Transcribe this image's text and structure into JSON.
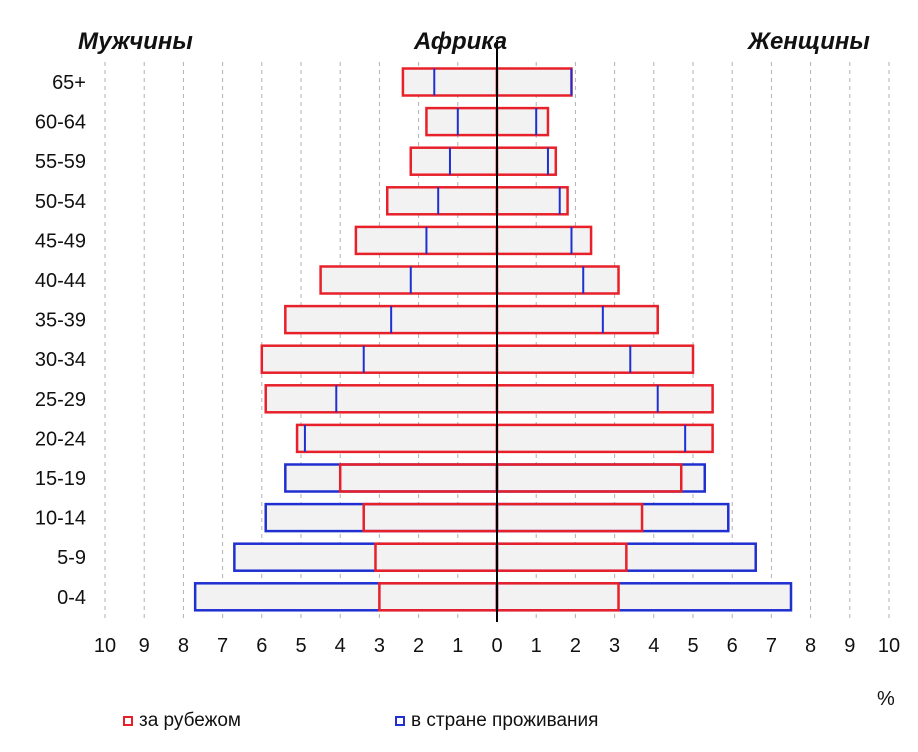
{
  "titles": {
    "men": "Мужчины",
    "region": "Африка",
    "women": "Женщины"
  },
  "percent_unit": "%",
  "legend": {
    "abroad": "за рубежом",
    "home": "в стране проживания"
  },
  "colors": {
    "abroad": "#e8202a",
    "home": "#1f2fd0",
    "bar_fill": "#f2f2f2",
    "grid": "#b0b0b0",
    "axis": "#000000"
  },
  "chart_data": {
    "type": "bar",
    "orientation": "horizontal population pyramid",
    "title": "Африка",
    "left_side": "Мужчины",
    "right_side": "Женщины",
    "xlabel": "%",
    "xlim": [
      -10,
      10
    ],
    "x_tick_labels": [
      "10",
      "9",
      "8",
      "7",
      "6",
      "5",
      "4",
      "3",
      "2",
      "1",
      "0",
      "1",
      "2",
      "3",
      "4",
      "5",
      "6",
      "7",
      "8",
      "9",
      "10"
    ],
    "grid": "vertical dashed",
    "legend_position": "bottom",
    "categories": [
      "65+",
      "60-64",
      "55-59",
      "50-54",
      "45-49",
      "40-44",
      "35-39",
      "30-34",
      "25-29",
      "20-24",
      "15-19",
      "10-14",
      "5-9",
      "0-4"
    ],
    "series": [
      {
        "name": "за рубежом",
        "men": [
          2.4,
          1.8,
          2.2,
          2.8,
          3.6,
          4.5,
          5.4,
          6.0,
          5.9,
          5.1,
          4.0,
          3.4,
          3.1,
          3.0
        ],
        "women": [
          1.9,
          1.3,
          1.5,
          1.8,
          2.4,
          3.1,
          4.1,
          5.0,
          5.5,
          5.5,
          4.7,
          3.7,
          3.3,
          3.1
        ]
      },
      {
        "name": "в стране проживания",
        "men": [
          1.6,
          1.0,
          1.2,
          1.5,
          1.8,
          2.2,
          2.7,
          3.4,
          4.1,
          4.9,
          5.4,
          5.9,
          6.7,
          7.7
        ],
        "women": [
          1.9,
          1.0,
          1.3,
          1.6,
          1.9,
          2.2,
          2.7,
          3.4,
          4.1,
          4.8,
          5.3,
          5.9,
          6.6,
          7.5
        ]
      }
    ]
  }
}
